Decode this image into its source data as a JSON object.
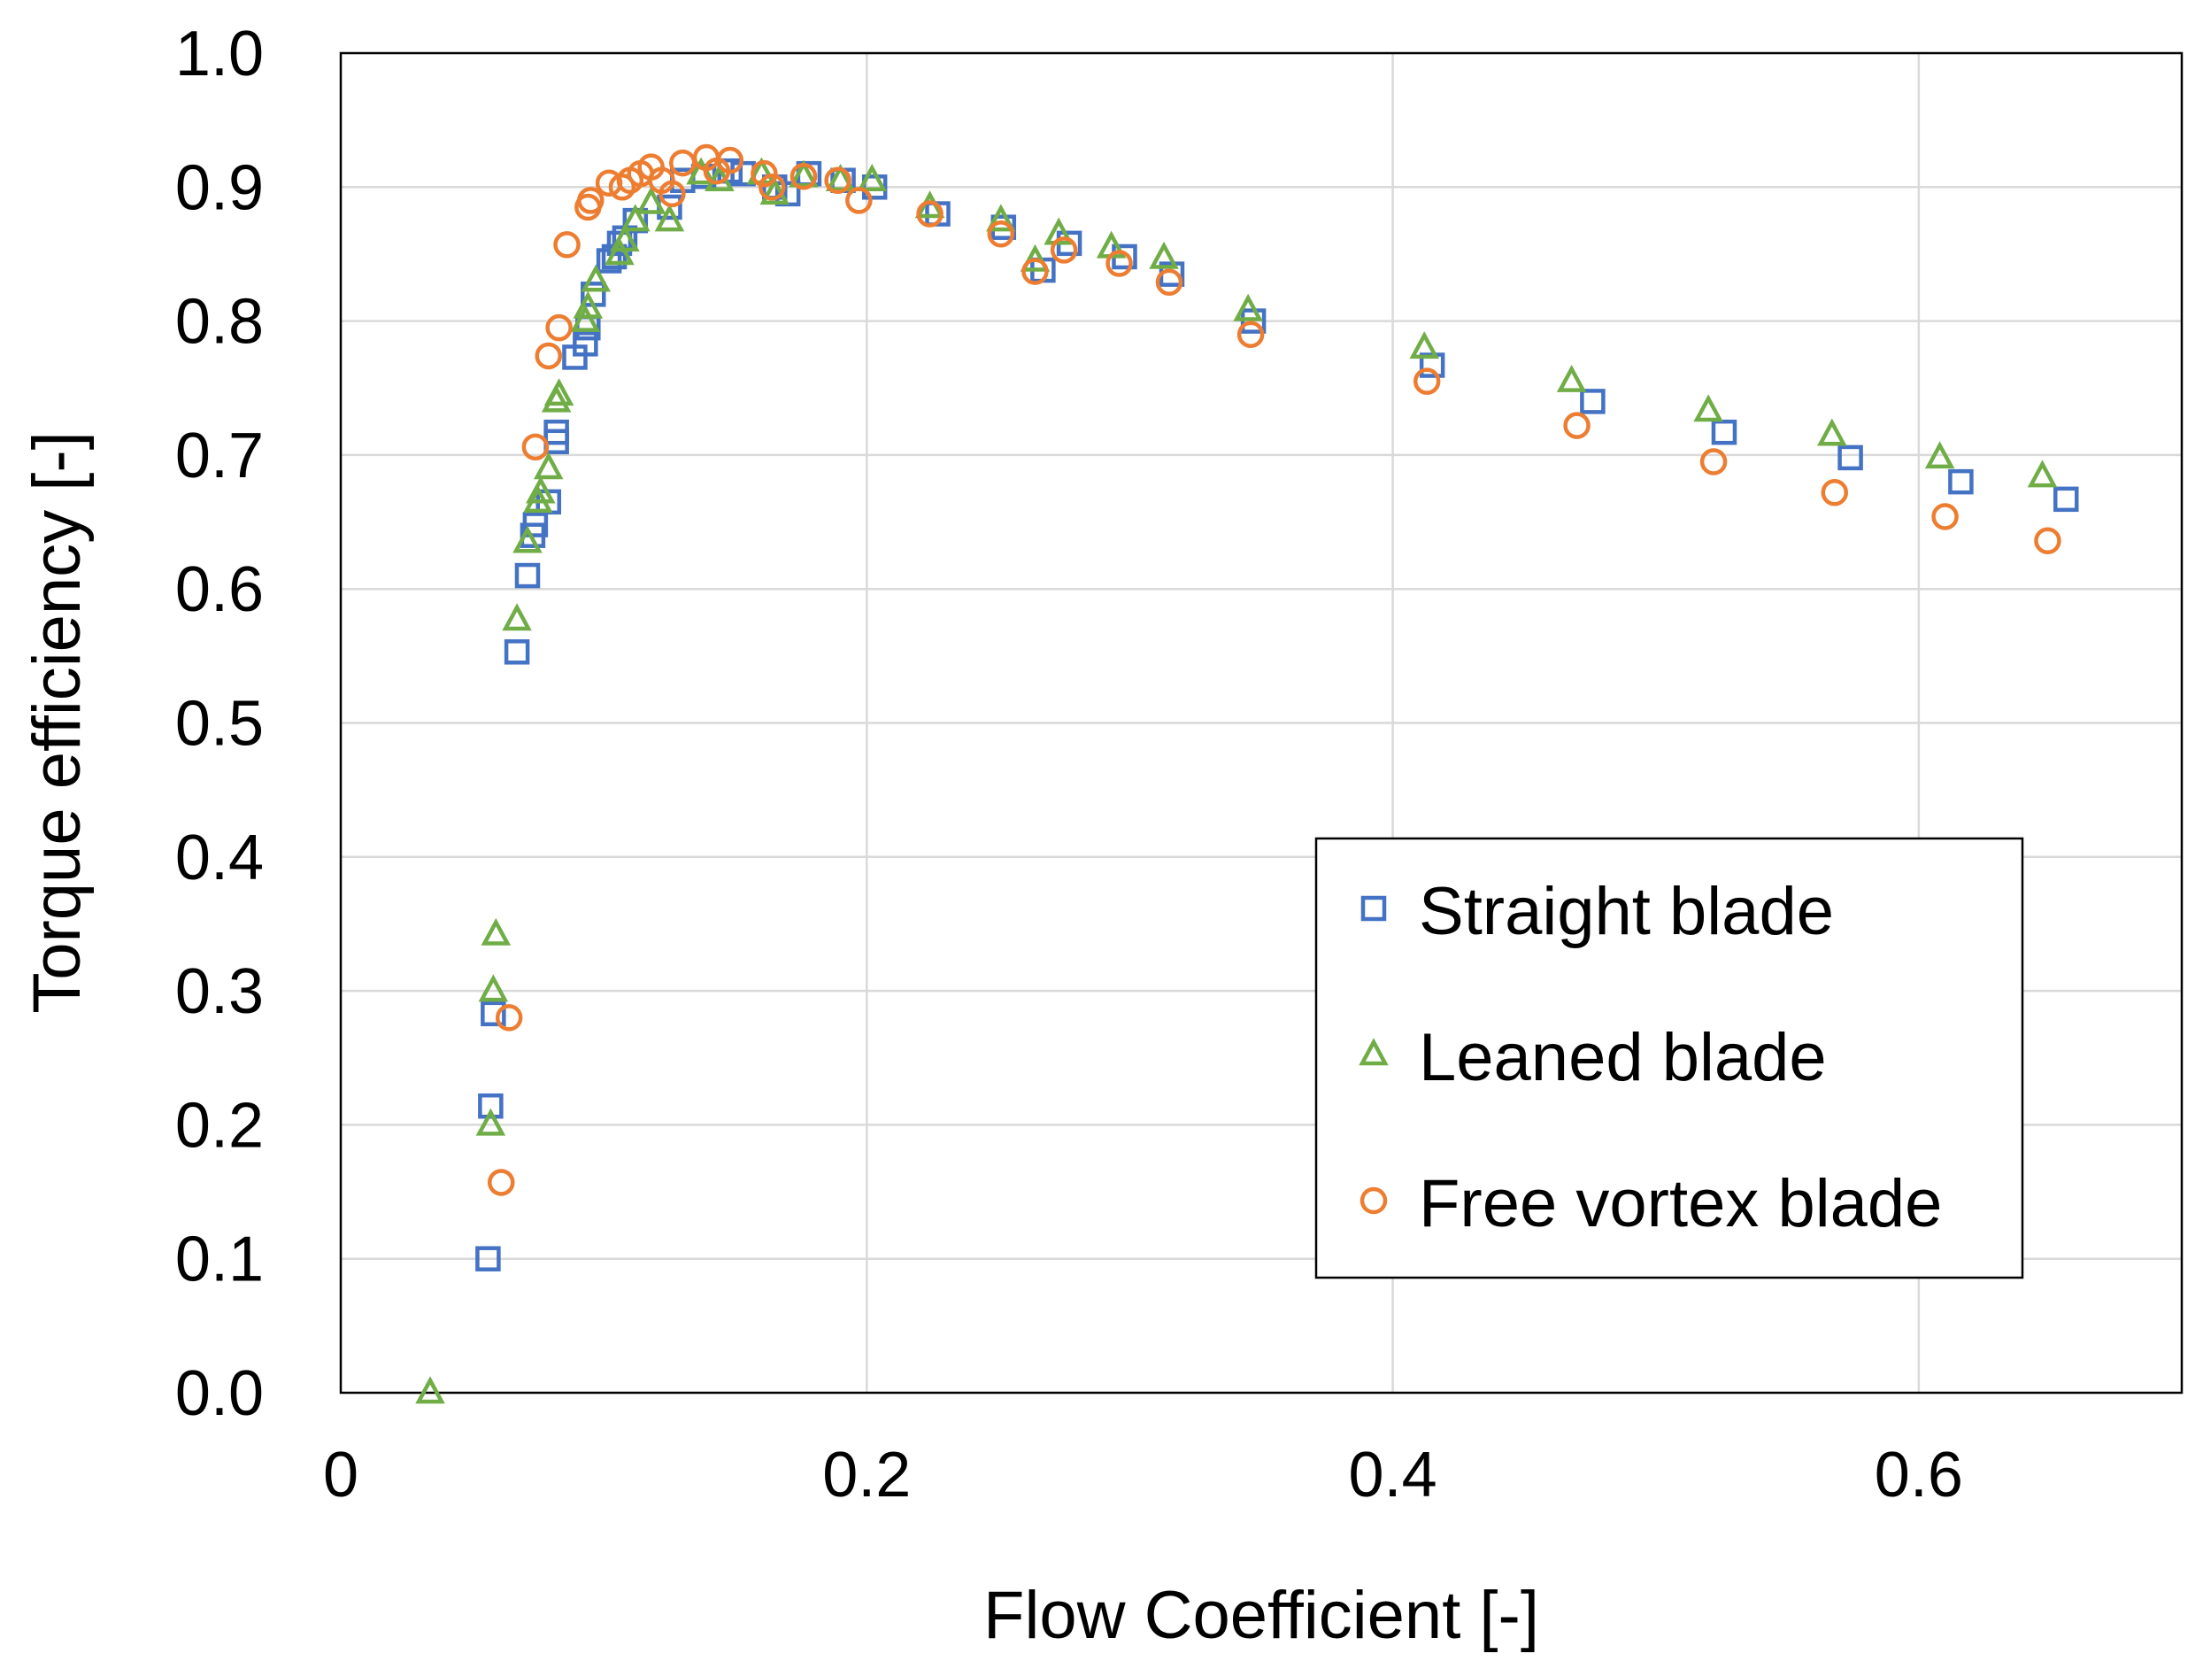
{
  "chart_data": {
    "type": "scatter",
    "title": "",
    "xlabel": "Flow Coefficient [-]",
    "ylabel": "Torque efficiency [-]",
    "xlim": [
      0,
      0.7
    ],
    "ylim": [
      0.0,
      1.0
    ],
    "x_ticks": [
      0,
      0.2,
      0.4,
      0.6
    ],
    "x_tick_labels": [
      "0",
      "0.2",
      "0.4",
      "0.6"
    ],
    "y_ticks": [
      0.0,
      0.1,
      0.2,
      0.3,
      0.4,
      0.5,
      0.6,
      0.7,
      0.8,
      0.9,
      1.0
    ],
    "y_tick_labels": [
      "0.0",
      "0.1",
      "0.2",
      "0.3",
      "0.4",
      "0.5",
      "0.6",
      "0.7",
      "0.8",
      "0.9",
      "1.0"
    ],
    "grid": true,
    "legend_position": "bottom-right",
    "series": [
      {
        "name": "Straight blade",
        "marker": "square",
        "color": "#4472c4",
        "points": [
          [
            0.056,
            0.1
          ],
          [
            0.057,
            0.214
          ],
          [
            0.058,
            0.283
          ],
          [
            0.067,
            0.553
          ],
          [
            0.071,
            0.61
          ],
          [
            0.073,
            0.64
          ],
          [
            0.074,
            0.648
          ],
          [
            0.079,
            0.665
          ],
          [
            0.082,
            0.71
          ],
          [
            0.082,
            0.717
          ],
          [
            0.089,
            0.773
          ],
          [
            0.093,
            0.783
          ],
          [
            0.094,
            0.795
          ],
          [
            0.096,
            0.82
          ],
          [
            0.102,
            0.845
          ],
          [
            0.104,
            0.848
          ],
          [
            0.106,
            0.858
          ],
          [
            0.108,
            0.862
          ],
          [
            0.112,
            0.875
          ],
          [
            0.125,
            0.885
          ],
          [
            0.13,
            0.905
          ],
          [
            0.138,
            0.908
          ],
          [
            0.148,
            0.912
          ],
          [
            0.153,
            0.91
          ],
          [
            0.165,
            0.9
          ],
          [
            0.17,
            0.895
          ],
          [
            0.178,
            0.91
          ],
          [
            0.191,
            0.905
          ],
          [
            0.203,
            0.9
          ],
          [
            0.227,
            0.88
          ],
          [
            0.252,
            0.87
          ],
          [
            0.267,
            0.838
          ],
          [
            0.277,
            0.858
          ],
          [
            0.298,
            0.848
          ],
          [
            0.316,
            0.835
          ],
          [
            0.347,
            0.8
          ],
          [
            0.415,
            0.767
          ],
          [
            0.476,
            0.74
          ],
          [
            0.526,
            0.717
          ],
          [
            0.574,
            0.698
          ],
          [
            0.616,
            0.68
          ],
          [
            0.656,
            0.667
          ]
        ]
      },
      {
        "name": "Leaned blade",
        "marker": "triangle",
        "color": "#70ad47",
        "points": [
          [
            0.034,
            0.0
          ],
          [
            0.057,
            0.2
          ],
          [
            0.058,
            0.3
          ],
          [
            0.059,
            0.342
          ],
          [
            0.067,
            0.577
          ],
          [
            0.071,
            0.635
          ],
          [
            0.075,
            0.665
          ],
          [
            0.076,
            0.672
          ],
          [
            0.079,
            0.69
          ],
          [
            0.082,
            0.74
          ],
          [
            0.083,
            0.745
          ],
          [
            0.093,
            0.8
          ],
          [
            0.094,
            0.81
          ],
          [
            0.097,
            0.83
          ],
          [
            0.106,
            0.85
          ],
          [
            0.108,
            0.86
          ],
          [
            0.112,
            0.875
          ],
          [
            0.118,
            0.888
          ],
          [
            0.125,
            0.875
          ],
          [
            0.137,
            0.91
          ],
          [
            0.144,
            0.905
          ],
          [
            0.16,
            0.91
          ],
          [
            0.165,
            0.895
          ],
          [
            0.176,
            0.908
          ],
          [
            0.19,
            0.905
          ],
          [
            0.202,
            0.905
          ],
          [
            0.224,
            0.885
          ],
          [
            0.251,
            0.875
          ],
          [
            0.264,
            0.845
          ],
          [
            0.273,
            0.865
          ],
          [
            0.293,
            0.855
          ],
          [
            0.313,
            0.847
          ],
          [
            0.345,
            0.808
          ],
          [
            0.412,
            0.78
          ],
          [
            0.468,
            0.755
          ],
          [
            0.52,
            0.733
          ],
          [
            0.567,
            0.715
          ],
          [
            0.608,
            0.698
          ],
          [
            0.647,
            0.684
          ]
        ]
      },
      {
        "name": "Free vortex blade",
        "marker": "circle",
        "color": "#ed7d31",
        "points": [
          [
            0.061,
            0.157
          ],
          [
            0.064,
            0.28
          ],
          [
            0.074,
            0.706
          ],
          [
            0.079,
            0.774
          ],
          [
            0.083,
            0.795
          ],
          [
            0.086,
            0.857
          ],
          [
            0.094,
            0.885
          ],
          [
            0.095,
            0.89
          ],
          [
            0.102,
            0.903
          ],
          [
            0.107,
            0.9
          ],
          [
            0.11,
            0.905
          ],
          [
            0.114,
            0.91
          ],
          [
            0.118,
            0.915
          ],
          [
            0.122,
            0.905
          ],
          [
            0.126,
            0.895
          ],
          [
            0.13,
            0.918
          ],
          [
            0.139,
            0.922
          ],
          [
            0.143,
            0.912
          ],
          [
            0.148,
            0.92
          ],
          [
            0.161,
            0.91
          ],
          [
            0.164,
            0.9
          ],
          [
            0.176,
            0.908
          ],
          [
            0.189,
            0.905
          ],
          [
            0.197,
            0.89
          ],
          [
            0.224,
            0.88
          ],
          [
            0.251,
            0.865
          ],
          [
            0.264,
            0.837
          ],
          [
            0.275,
            0.853
          ],
          [
            0.296,
            0.843
          ],
          [
            0.315,
            0.829
          ],
          [
            0.346,
            0.79
          ],
          [
            0.413,
            0.755
          ],
          [
            0.47,
            0.722
          ],
          [
            0.522,
            0.695
          ],
          [
            0.568,
            0.672
          ],
          [
            0.61,
            0.654
          ],
          [
            0.649,
            0.636
          ]
        ]
      }
    ]
  }
}
